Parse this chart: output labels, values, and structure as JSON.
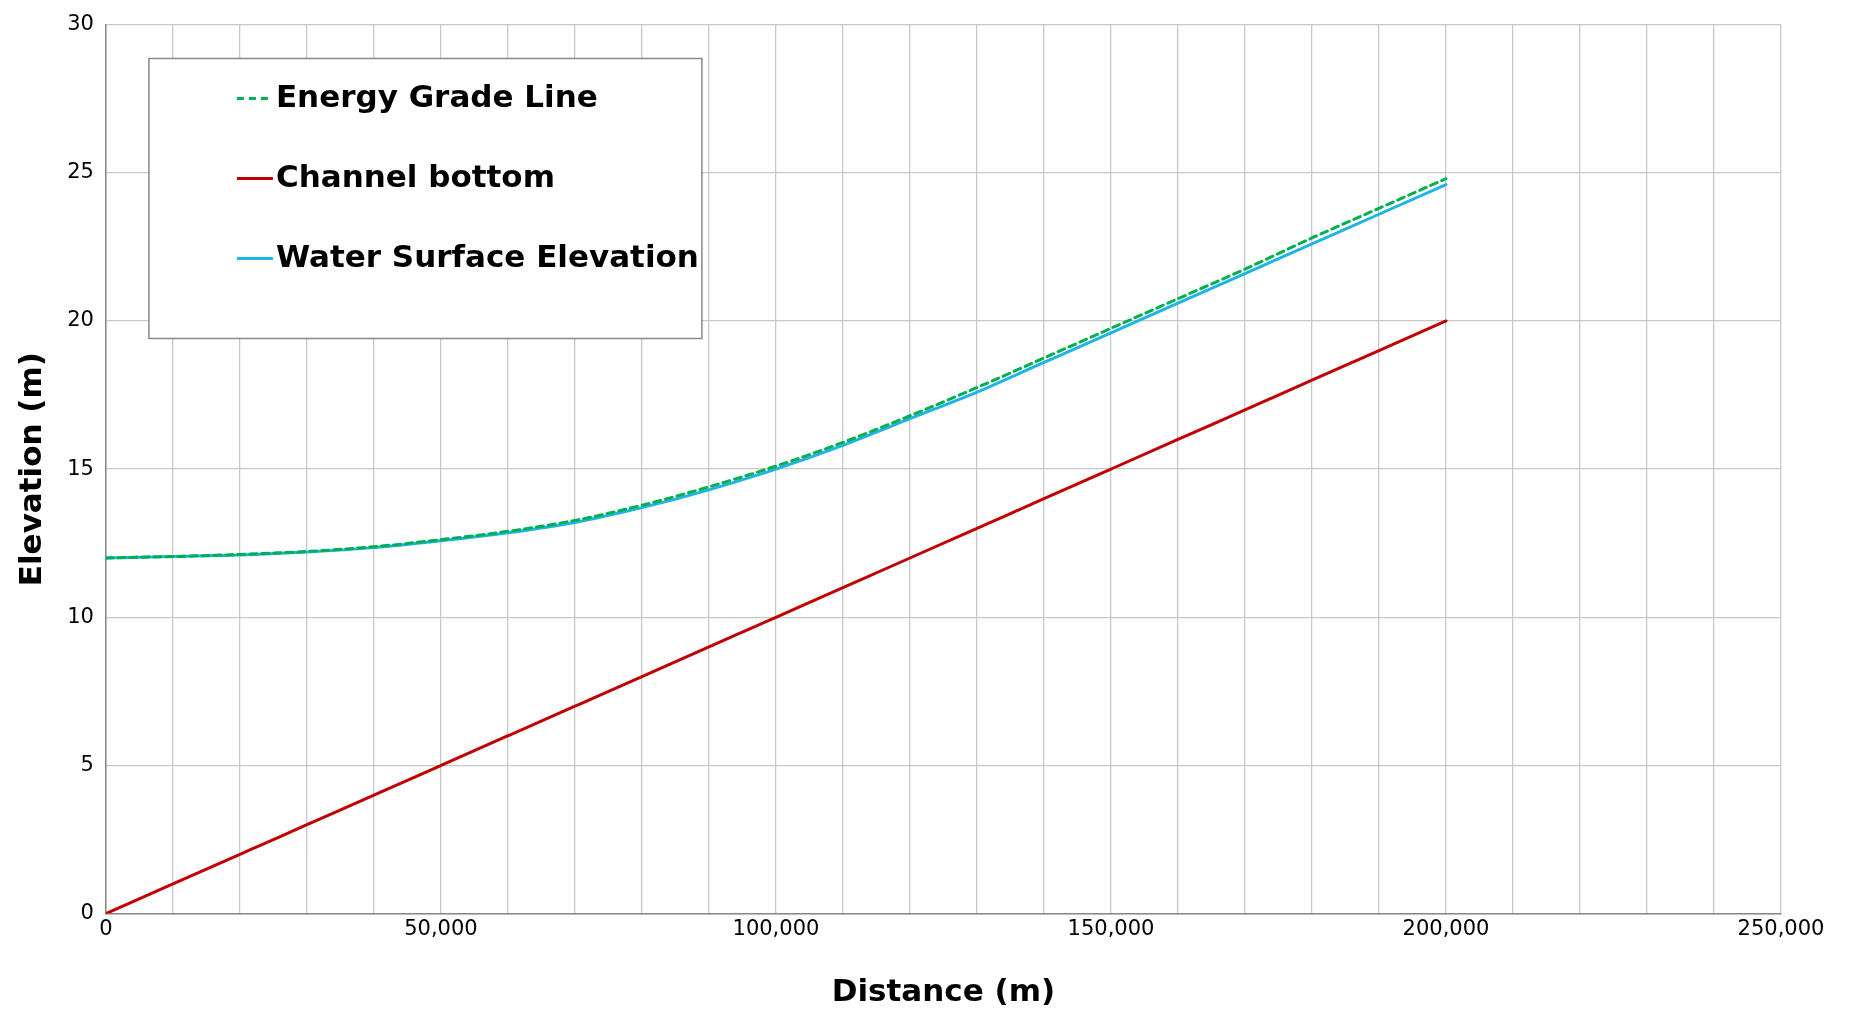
{
  "chart_data": {
    "type": "line",
    "xlabel": "Distance (m)",
    "ylabel": "Elevation (m)",
    "x": [
      0,
      10000,
      20000,
      30000,
      40000,
      50000,
      60000,
      70000,
      80000,
      90000,
      100000,
      110000,
      120000,
      130000,
      140000,
      150000,
      160000,
      170000,
      180000,
      190000,
      200000
    ],
    "series": [
      {
        "name": "Energy Grade Line",
        "color": "#00b050",
        "line_style": "dashed",
        "values": [
          12.0,
          12.05,
          12.12,
          12.22,
          12.38,
          12.62,
          12.9,
          13.27,
          13.78,
          14.4,
          15.1,
          15.9,
          16.8,
          17.75,
          18.75,
          19.75,
          20.75,
          21.75,
          22.8,
          23.8,
          24.8
        ]
      },
      {
        "name": "Channel bottom",
        "color": "#c00000",
        "line_style": "solid",
        "values": [
          0,
          1,
          2,
          3,
          4,
          5,
          6,
          7,
          8,
          9,
          10,
          11,
          12,
          13,
          14,
          15,
          16,
          17,
          18,
          19,
          20
        ]
      },
      {
        "name": "Water Surface Elevation",
        "color": "#1fb4e6",
        "line_style": "solid",
        "values": [
          12.0,
          12.05,
          12.1,
          12.2,
          12.35,
          12.58,
          12.85,
          13.2,
          13.7,
          14.3,
          15.0,
          15.8,
          16.7,
          17.6,
          18.6,
          19.6,
          20.6,
          21.6,
          22.6,
          23.6,
          24.6
        ]
      }
    ],
    "xlim": [
      0,
      250000
    ],
    "xticks": [
      0,
      {
        "value": 10000,
        "label": null
      },
      {
        "value": 20000,
        "label": null
      },
      {
        "value": 30000,
        "label": null
      },
      {
        "value": 40000,
        "label": null
      },
      {
        "value": 50000,
        "label": "50,000"
      },
      {
        "value": 60000,
        "label": null
      },
      {
        "value": 70000,
        "label": null
      },
      {
        "value": 80000,
        "label": null
      },
      {
        "value": 90000,
        "label": null
      },
      {
        "value": 100000,
        "label": "100,000"
      },
      {
        "value": 110000,
        "label": null
      },
      {
        "value": 120000,
        "label": null
      },
      {
        "value": 130000,
        "label": null
      },
      {
        "value": 140000,
        "label": null
      },
      {
        "value": 150000,
        "label": "150,000"
      },
      {
        "value": 160000,
        "label": null
      },
      {
        "value": 170000,
        "label": null
      },
      {
        "value": 180000,
        "label": null
      },
      {
        "value": 190000,
        "label": null
      },
      {
        "value": 200000,
        "label": "200,000"
      },
      {
        "value": 210000,
        "label": null
      },
      {
        "value": 220000,
        "label": null
      },
      {
        "value": 230000,
        "label": null
      },
      {
        "value": 240000,
        "label": null
      },
      {
        "value": 250000,
        "label": "250,000"
      }
    ],
    "ylim": [
      0,
      30
    ],
    "yticks": [
      0,
      5,
      10,
      15,
      20,
      25,
      30
    ],
    "grid": true,
    "legend": "top left",
    "marker": "none"
  }
}
